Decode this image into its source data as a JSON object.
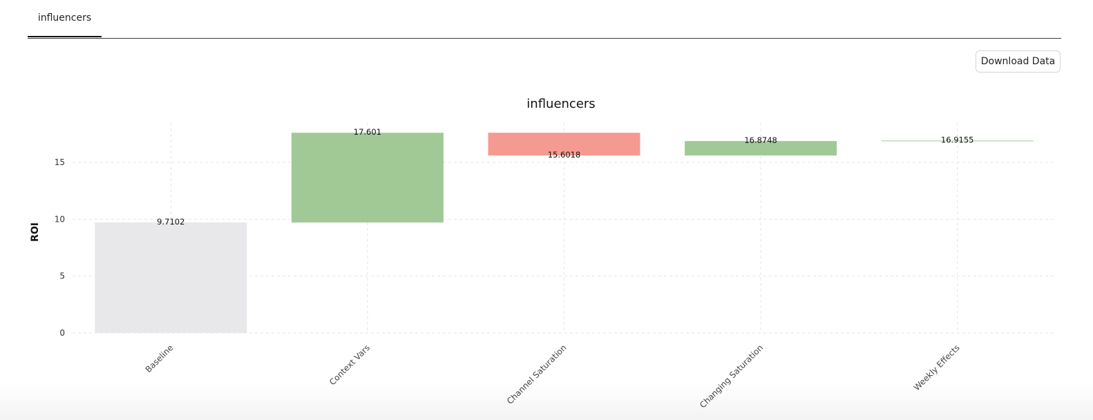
{
  "tabs": [
    {
      "label": "influencers",
      "active": true
    }
  ],
  "download_label": "Download Data",
  "chart_data": {
    "type": "bar",
    "subtype": "waterfall",
    "title": "influencers",
    "ylabel": "ROI",
    "xlabel": "",
    "ylim": [
      0,
      18
    ],
    "yticks": [
      0,
      5,
      10,
      15
    ],
    "grid": true,
    "categories": [
      "Baseline",
      "Context Vars",
      "Channel Saturation",
      "Changing Saturation",
      "Weekly Effects"
    ],
    "bars": [
      {
        "category": "Baseline",
        "start": 0,
        "end": 9.7102,
        "label": "9.7102",
        "kind": "base"
      },
      {
        "category": "Context Vars",
        "start": 9.7102,
        "end": 17.601,
        "label": "17.601",
        "kind": "increase"
      },
      {
        "category": "Channel Saturation",
        "start": 17.601,
        "end": 15.6018,
        "label": "15.6018",
        "kind": "decrease"
      },
      {
        "category": "Changing Saturation",
        "start": 15.6018,
        "end": 16.8748,
        "label": "16.8748",
        "kind": "increase"
      },
      {
        "category": "Weekly Effects",
        "start": 16.8748,
        "end": 16.9155,
        "label": "16.9155",
        "kind": "increase"
      }
    ],
    "colors": {
      "base": "#e8e8ea",
      "increase": "#a1c995",
      "decrease": "#f49a91"
    }
  }
}
